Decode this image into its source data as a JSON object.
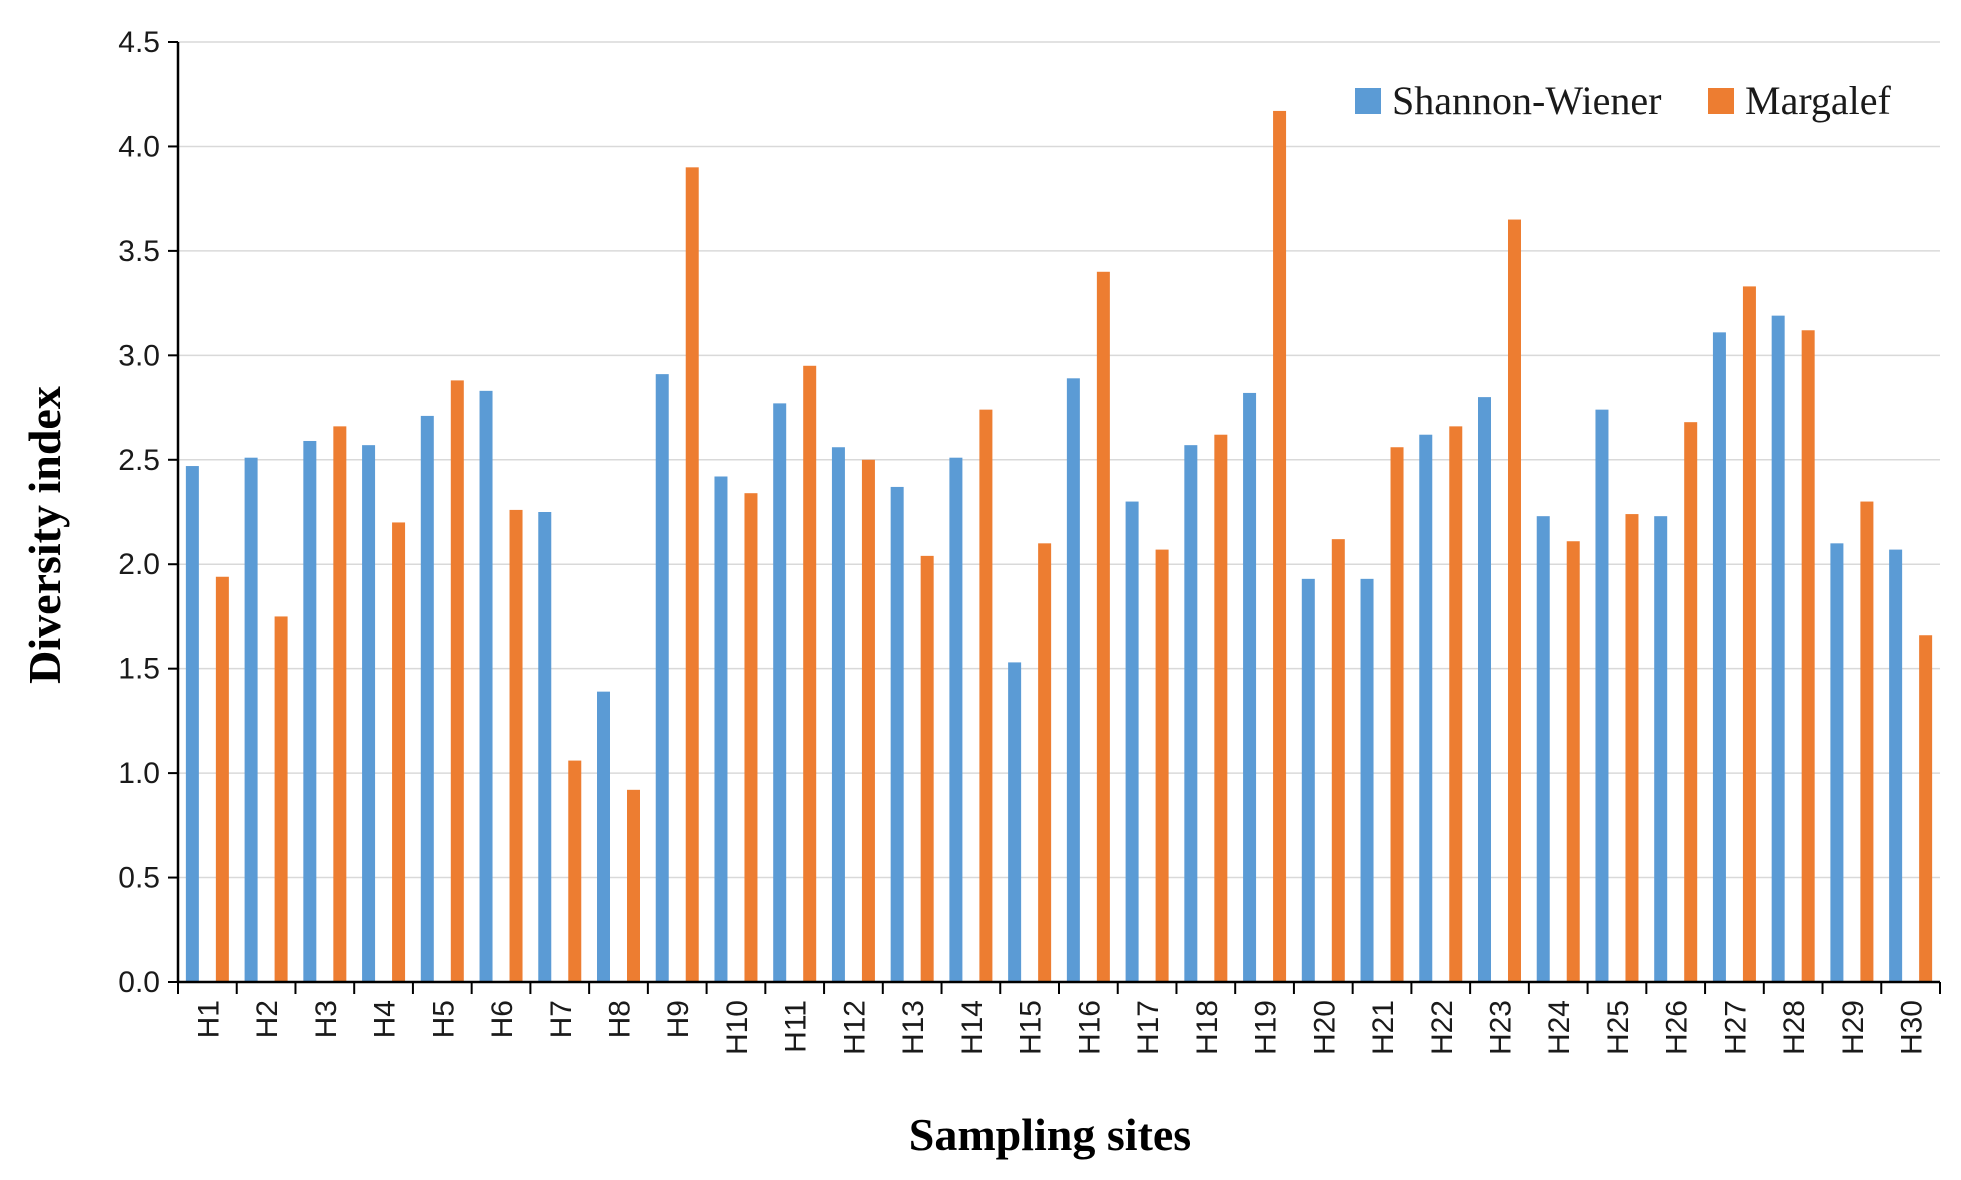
{
  "chart_data": {
    "type": "bar",
    "xlabel": "Sampling sites",
    "ylabel": "Diversity index",
    "ylim": [
      0,
      4.5
    ],
    "yticks": [
      "0.0",
      "0.5",
      "1.0",
      "1.5",
      "2.0",
      "2.5",
      "3.0",
      "3.5",
      "4.0",
      "4.5"
    ],
    "grid": true,
    "legend_position": "top-right",
    "categories": [
      "H1",
      "H2",
      "H3",
      "H4",
      "H5",
      "H6",
      "H7",
      "H8",
      "H9",
      "H10",
      "H11",
      "H12",
      "H13",
      "H14",
      "H15",
      "H16",
      "H17",
      "H18",
      "H19",
      "H20",
      "H21",
      "H22",
      "H23",
      "H24",
      "H25",
      "H26",
      "H27",
      "H28",
      "H29",
      "H30"
    ],
    "series": [
      {
        "name": "Shannon-Wiener",
        "color": "#5B9BD5",
        "values": [
          2.47,
          2.51,
          2.59,
          2.57,
          2.71,
          2.83,
          2.25,
          1.39,
          2.91,
          2.42,
          2.77,
          2.56,
          2.37,
          2.51,
          1.53,
          2.89,
          2.3,
          2.57,
          2.82,
          1.93,
          1.93,
          2.62,
          2.8,
          2.23,
          2.74,
          2.23,
          3.11,
          3.19,
          2.1,
          2.07
        ]
      },
      {
        "name": "Margalef",
        "color": "#ED7D31",
        "values": [
          1.94,
          1.75,
          2.66,
          2.2,
          2.88,
          2.26,
          1.06,
          0.92,
          3.9,
          2.34,
          2.95,
          2.5,
          2.04,
          2.74,
          2.1,
          3.4,
          2.07,
          2.62,
          4.17,
          2.12,
          2.56,
          2.66,
          3.65,
          2.11,
          2.24,
          2.68,
          3.33,
          3.12,
          2.3,
          1.66
        ]
      }
    ]
  }
}
